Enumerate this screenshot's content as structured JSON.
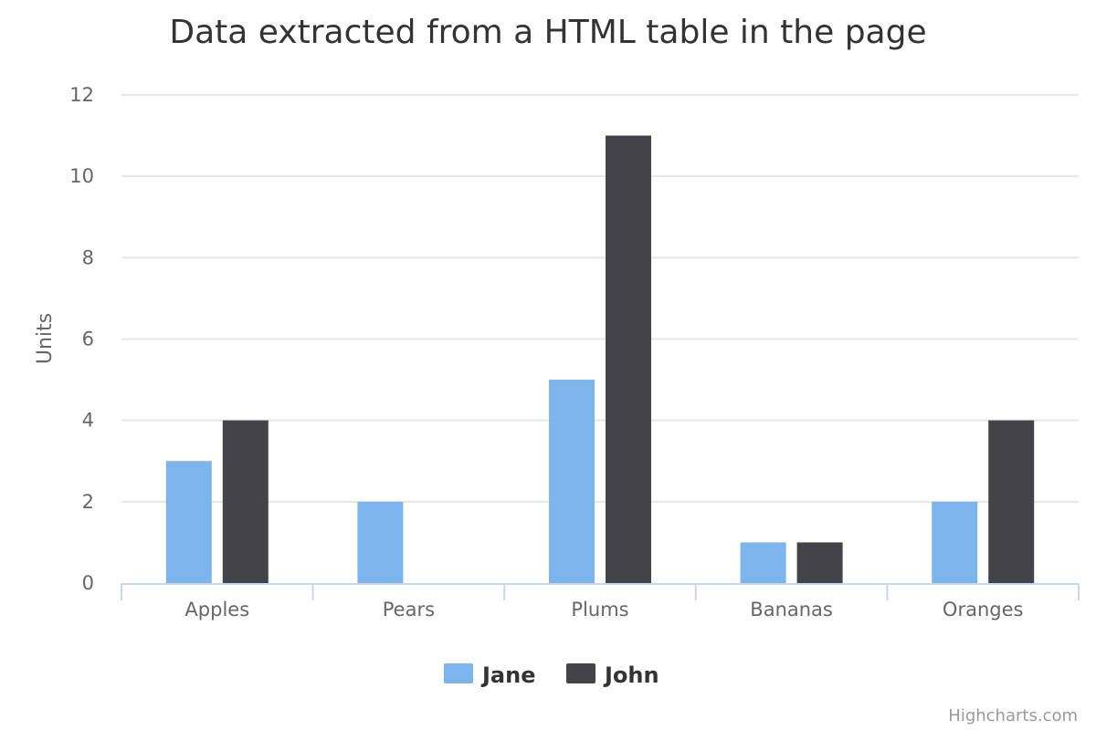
{
  "chart_data": {
    "type": "bar",
    "title": "Data extracted from a HTML table in the page",
    "ylabel": "Units",
    "xlabel": "",
    "categories": [
      "Apples",
      "Pears",
      "Plums",
      "Bananas",
      "Oranges"
    ],
    "series": [
      {
        "name": "Jane",
        "values": [
          3,
          2,
          5,
          1,
          2
        ]
      },
      {
        "name": "John",
        "values": [
          4,
          0,
          11,
          1,
          4
        ]
      }
    ],
    "ylim": [
      0,
      12
    ],
    "yticks": [
      "0",
      "2",
      "4",
      "6",
      "8",
      "10",
      "12"
    ],
    "grid": true,
    "legend_position": "bottom-center"
  },
  "colors": {
    "Jane": "#7cb5ec",
    "John": "#434348",
    "grid": "#e6e6e6",
    "axis": "#ccd6eb"
  },
  "credits": "Highcharts.com"
}
